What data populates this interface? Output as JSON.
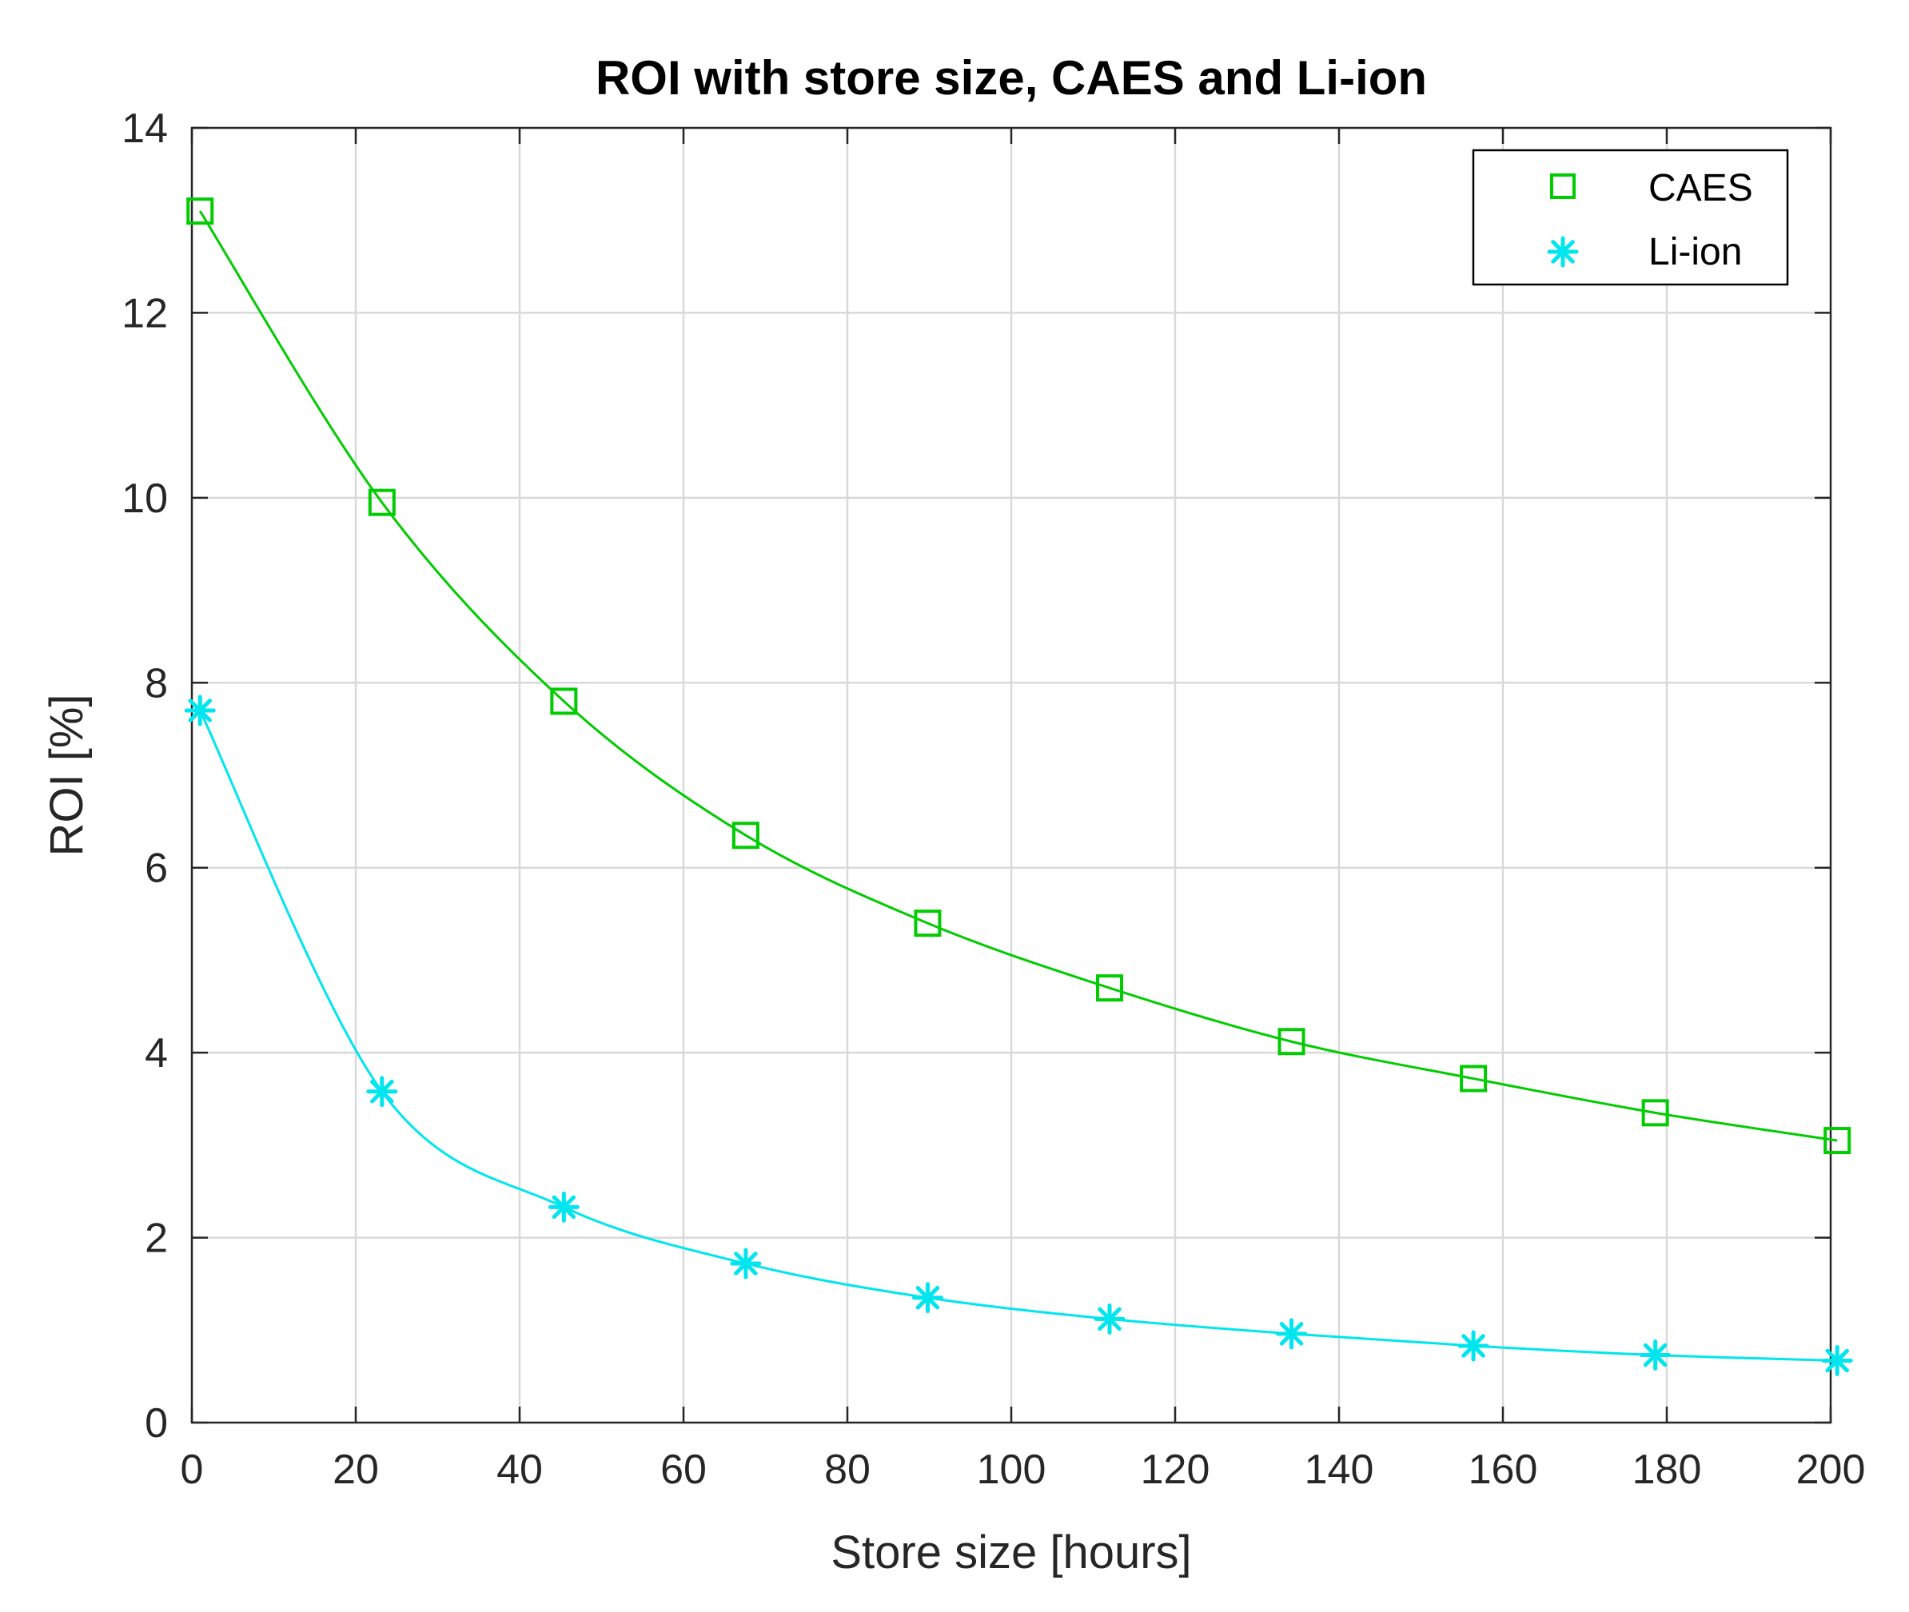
{
  "chart_data": {
    "type": "line",
    "title": "ROI with store size, CAES and Li-ion",
    "xlabel": "Store size [hours]",
    "ylabel": "ROI [%]",
    "xlim": [
      0,
      200
    ],
    "ylim": [
      0,
      14
    ],
    "xticks": [
      0,
      20,
      40,
      60,
      80,
      100,
      120,
      140,
      160,
      180,
      200
    ],
    "yticks": [
      0,
      2,
      4,
      6,
      8,
      10,
      12,
      14
    ],
    "grid": true,
    "legend_position": "top-right",
    "series": [
      {
        "name": "CAES",
        "color": "#00cc00",
        "marker": "square",
        "marker_x": [
          1,
          23.2,
          45.4,
          67.6,
          89.8,
          112,
          134.2,
          156.4,
          178.6,
          200.8
        ],
        "marker_y": [
          13.1,
          9.95,
          7.8,
          6.35,
          5.4,
          4.7,
          4.12,
          3.72,
          3.35,
          3.05
        ]
      },
      {
        "name": "Li-ion",
        "color": "#00e5ee",
        "marker": "asterisk",
        "marker_x": [
          1,
          23.2,
          45.4,
          67.6,
          89.8,
          112,
          134.2,
          156.4,
          178.6,
          200.8
        ],
        "marker_y": [
          7.7,
          3.58,
          2.33,
          1.72,
          1.35,
          1.12,
          0.96,
          0.83,
          0.73,
          0.67
        ]
      }
    ]
  }
}
